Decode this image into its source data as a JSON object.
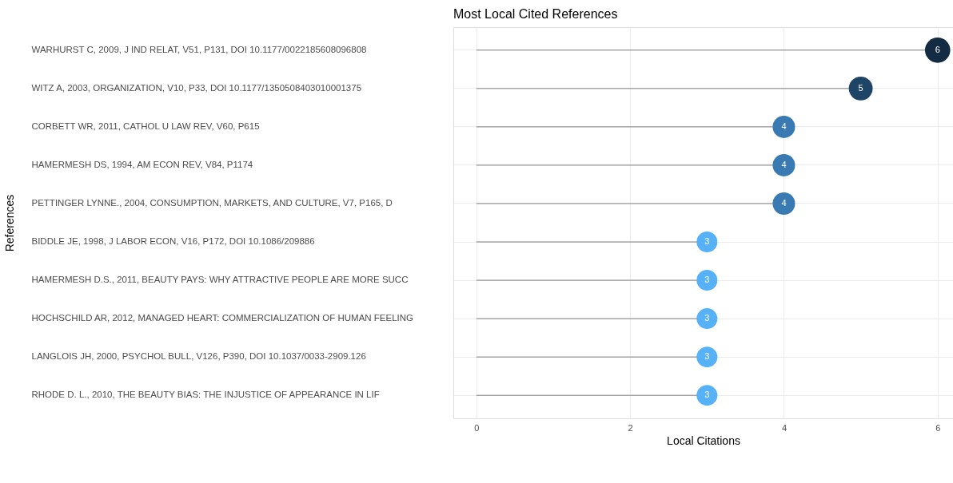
{
  "chart_data": {
    "type": "lollipop",
    "title": "Most Local Cited References",
    "xlabel": "Local Citations",
    "ylabel": "References",
    "categories": [
      "WARHURST C, 2009, J IND RELAT, V51, P131, DOI 10.1177/0022185608096808",
      "WITZ A, 2003, ORGANIZATION, V10, P33, DOI 10.1177/1350508403010001375",
      "CORBETT WR, 2011, CATHOL U LAW REV, V60, P615",
      "HAMERMESH DS, 1994, AM ECON REV, V84, P1174",
      "PETTINGER LYNNE., 2004, CONSUMPTION, MARKETS, AND CULTURE, V7, P165, D",
      "BIDDLE JE, 1998, J LABOR ECON, V16, P172, DOI 10.1086/209886",
      "HAMERMESH D.S., 2011, BEAUTY PAYS: WHY ATTRACTIVE PEOPLE ARE MORE SUCC",
      "HOCHSCHILD AR, 2012, MANAGED HEART: COMMERCIALIZATION OF HUMAN FEELING",
      "LANGLOIS JH, 2000, PSYCHOL BULL, V126, P390, DOI 10.1037/0033-2909.126",
      "RHODE D. L., 2010, THE BEAUTY BIAS: THE INJUSTICE OF APPEARANCE IN LIF"
    ],
    "values": [
      6,
      5,
      4,
      4,
      4,
      3,
      3,
      3,
      3,
      3
    ],
    "colors": [
      "#132b43",
      "#1f4566",
      "#3a7ab3",
      "#3a7ab3",
      "#3a7ab3",
      "#56b1f7",
      "#56b1f7",
      "#56b1f7",
      "#56b1f7",
      "#56b1f7"
    ],
    "xlim": [
      -0.3,
      6.2
    ],
    "xticks": [
      0,
      2,
      4,
      6
    ],
    "orientation": "horizontal",
    "grid": true,
    "data_labels": true
  }
}
